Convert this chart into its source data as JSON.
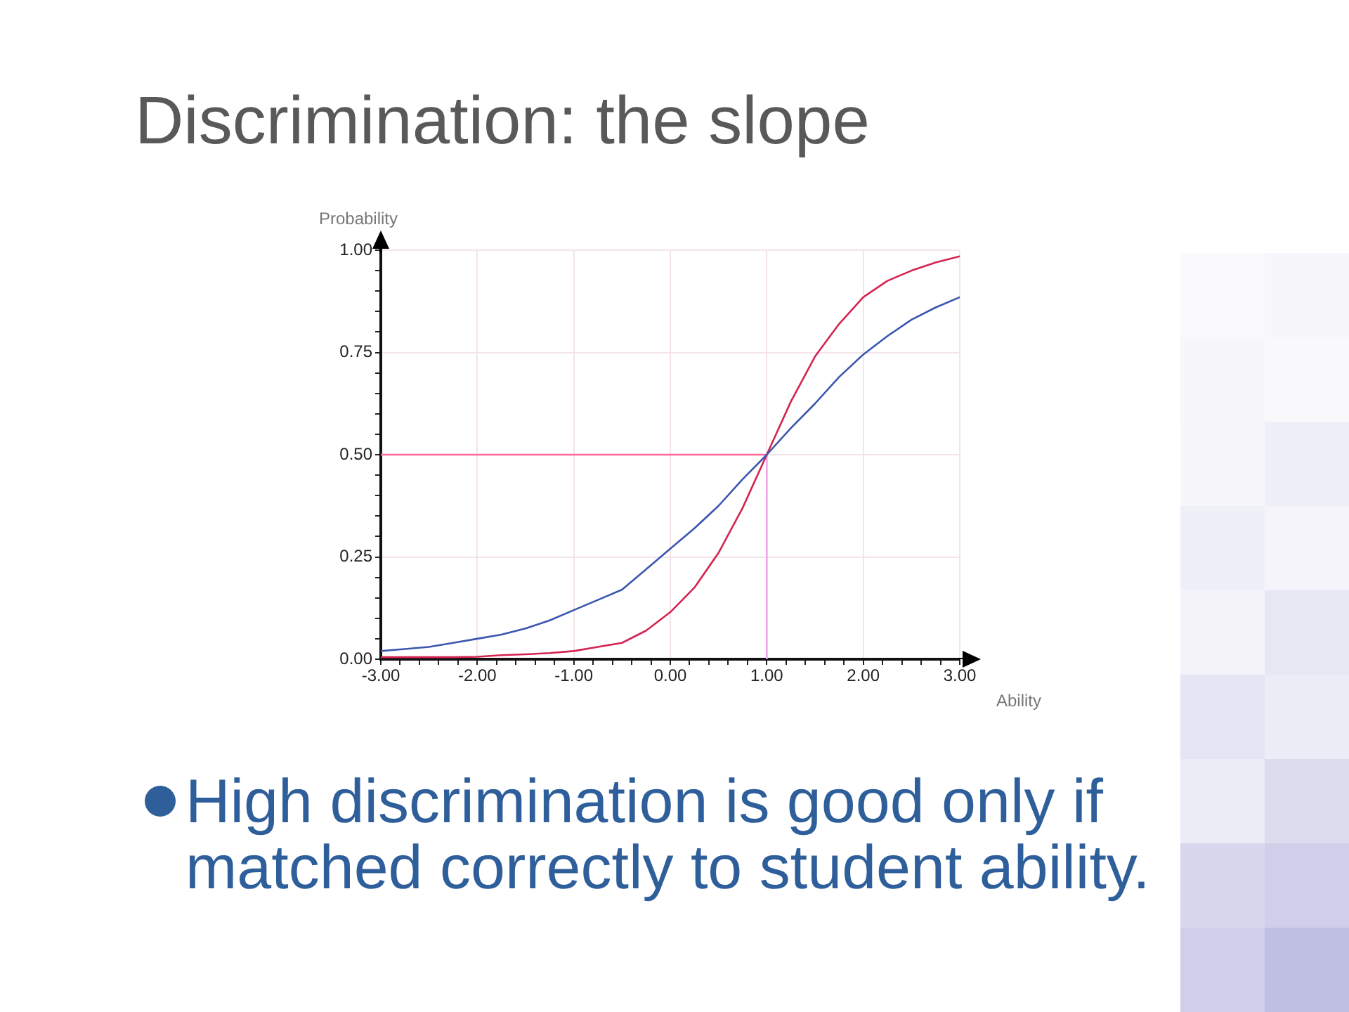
{
  "chart_data": {
    "type": "line",
    "title": "Discrimination: the slope",
    "xlabel": "Ability",
    "ylabel": "Probability",
    "annotations": [
      "High discrimination is good only if matched correctly to student ability."
    ],
    "xlim": [
      -3,
      3
    ],
    "ylim": [
      0,
      1
    ],
    "xticks": [
      {
        "value": -3,
        "label": "-3.00"
      },
      {
        "value": -2.8,
        "label": null
      },
      {
        "value": -2.6,
        "label": null
      },
      {
        "value": -2.4,
        "label": null
      },
      {
        "value": -2.2,
        "label": null
      },
      {
        "value": -2,
        "label": "-2.00"
      },
      {
        "value": -1.8,
        "label": null
      },
      {
        "value": -1.6,
        "label": null
      },
      {
        "value": -1.4,
        "label": null
      },
      {
        "value": -1.2,
        "label": null
      },
      {
        "value": -1,
        "label": "-1.00"
      },
      {
        "value": -0.8,
        "label": null
      },
      {
        "value": -0.6,
        "label": null
      },
      {
        "value": -0.4,
        "label": null
      },
      {
        "value": -0.2,
        "label": null
      },
      {
        "value": 0,
        "label": "0.00"
      },
      {
        "value": 0.2,
        "label": null
      },
      {
        "value": 0.4,
        "label": null
      },
      {
        "value": 0.6,
        "label": null
      },
      {
        "value": 0.8,
        "label": null
      },
      {
        "value": 1,
        "label": "1.00"
      },
      {
        "value": 1.2,
        "label": null
      },
      {
        "value": 1.4,
        "label": null
      },
      {
        "value": 1.6,
        "label": null
      },
      {
        "value": 1.8,
        "label": null
      },
      {
        "value": 2,
        "label": "2.00"
      },
      {
        "value": 2.2,
        "label": null
      },
      {
        "value": 2.4,
        "label": null
      },
      {
        "value": 2.6,
        "label": null
      },
      {
        "value": 2.8,
        "label": null
      },
      {
        "value": 3,
        "label": "3.00"
      }
    ],
    "yticks": [
      {
        "value": 0,
        "label": "0.00"
      },
      {
        "value": 0.05,
        "label": null
      },
      {
        "value": 0.1,
        "label": null
      },
      {
        "value": 0.15,
        "label": null
      },
      {
        "value": 0.2,
        "label": null
      },
      {
        "value": 0.25,
        "label": "0.25"
      },
      {
        "value": 0.3,
        "label": null
      },
      {
        "value": 0.35,
        "label": null
      },
      {
        "value": 0.4,
        "label": null
      },
      {
        "value": 0.45,
        "label": null
      },
      {
        "value": 0.5,
        "label": "0.50"
      },
      {
        "value": 0.55,
        "label": null
      },
      {
        "value": 0.6,
        "label": null
      },
      {
        "value": 0.65,
        "label": null
      },
      {
        "value": 0.7,
        "label": null
      },
      {
        "value": 0.75,
        "label": "0.75"
      },
      {
        "value": 0.8,
        "label": null
      },
      {
        "value": 0.85,
        "label": null
      },
      {
        "value": 0.9,
        "label": null
      },
      {
        "value": 0.95,
        "label": null
      },
      {
        "value": 1,
        "label": "1.00"
      }
    ],
    "grid": true,
    "legend": false,
    "marker": "none",
    "line_style": "solid",
    "series": [
      {
        "color": "#3a56b0",
        "x": [
          -3,
          -2.75,
          -2.5,
          -2.25,
          -2,
          -1.75,
          -1.5,
          -1.25,
          -1,
          -0.75,
          -0.5,
          -0.25,
          0,
          0.25,
          0.5,
          0.75,
          1,
          1.25,
          1.5,
          1.75,
          2,
          2.25,
          2.5,
          2.75,
          3
        ],
        "values": [
          0.02,
          0.025,
          0.03,
          0.04,
          0.05,
          0.06,
          0.075,
          0.095,
          0.12,
          0.145,
          0.17,
          0.22,
          0.27,
          0.32,
          0.375,
          0.44,
          0.5,
          0.565,
          0.625,
          0.69,
          0.745,
          0.79,
          0.83,
          0.86,
          0.885
        ]
      },
      {
        "color": "#d42450",
        "x": [
          -3,
          -2.75,
          -2.5,
          -2.25,
          -2,
          -1.75,
          -1.5,
          -1.25,
          -1,
          -0.75,
          -0.5,
          -0.25,
          0,
          0.25,
          0.5,
          0.75,
          1,
          1.25,
          1.5,
          1.75,
          2,
          2.25,
          2.5,
          2.75,
          3
        ],
        "values": [
          0.005,
          0.005,
          0.005,
          0.005,
          0.006,
          0.01,
          0.012,
          0.015,
          0.02,
          0.03,
          0.04,
          0.07,
          0.115,
          0.175,
          0.26,
          0.37,
          0.5,
          0.63,
          0.74,
          0.82,
          0.885,
          0.925,
          0.95,
          0.97,
          0.985
        ]
      },
      {
        "color": "#ff6a96",
        "x": [
          -3,
          1
        ],
        "values": [
          0.5,
          0.5
        ]
      },
      {
        "color": "#f2a6ea",
        "x": [
          1,
          1
        ],
        "values": [
          0.5,
          0
        ]
      }
    ]
  }
}
